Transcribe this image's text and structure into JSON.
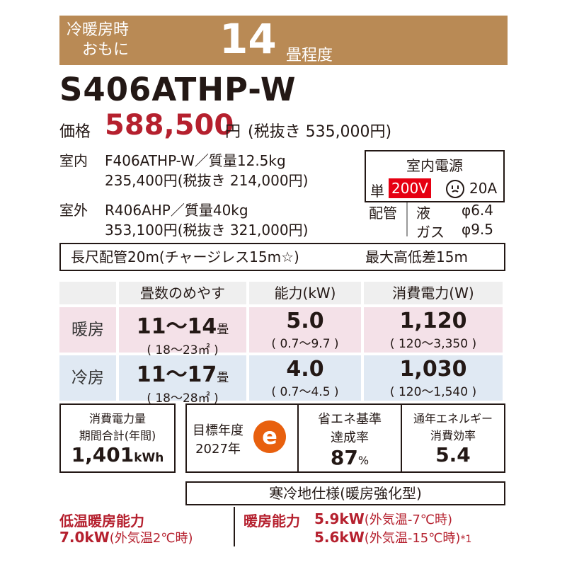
{
  "banner": {
    "line1": "冷暖房時",
    "line2": "おもに",
    "number": "14",
    "unit": "畳程度"
  },
  "model": "S406ATHP-W",
  "price": {
    "label": "価格",
    "value": "588,500",
    "yen": "円",
    "tax_note": "(税抜き 535,000円)"
  },
  "indoor": {
    "label": "室内",
    "model": "F406ATHP-W／質量12.5kg",
    "price": "235,400円(税抜き 214,000円)"
  },
  "outdoor": {
    "label": "室外",
    "model": "R406AHP／質量40kg",
    "price": "353,100円(税抜き 321,000円)"
  },
  "power": {
    "title": "室内電源",
    "single": "単",
    "voltage": "200V",
    "amp": "20A"
  },
  "piping": {
    "label": "配管",
    "liquid": "液",
    "liquid_size": "φ6.4",
    "gas": "ガス",
    "gas_size": "φ9.5"
  },
  "long_pipe": {
    "text": "長尺配管20m(チャージレス15m☆)",
    "height": "最大高低差15m"
  },
  "table": {
    "headers": [
      "畳数のめやす",
      "能力(kW)",
      "消費電力(W)"
    ],
    "rows": [
      {
        "label": "暖房",
        "tatami": "11～14",
        "tatami_unit": "畳",
        "tatami_sub": "( 18～23㎡ )",
        "capacity": "5.0",
        "capacity_sub": "( 0.7～9.7 )",
        "power": "1,120",
        "power_sub": "( 120～3,350 )"
      },
      {
        "label": "冷房",
        "tatami": "11～17",
        "tatami_unit": "畳",
        "tatami_sub": "( 18～28㎡ )",
        "capacity": "4.0",
        "capacity_sub": "( 0.7～4.5 )",
        "power": "1,030",
        "power_sub": "( 120～1,540 )"
      }
    ]
  },
  "energy": {
    "consumption_label1": "消費電力量",
    "consumption_label2": "期間合計(年間)",
    "consumption_value": "1,401",
    "consumption_unit": "kWh",
    "target_label1": "目標年度",
    "target_label2": "2027年",
    "eco_icon": "e",
    "achieve_label1": "省エネ基準",
    "achieve_label2": "達成率",
    "achieve_value": "87",
    "achieve_unit": "%",
    "apf_label1": "通年エネルギー",
    "apf_label2": "消費効率",
    "apf_value": "5.4"
  },
  "cold_spec": "寒冷地仕様(暖房強化型)",
  "low_temp": {
    "label": "低温暖房能力",
    "value": "7.0kW",
    "condition": "(外気温2℃時)"
  },
  "heating": {
    "label": "暖房能力",
    "value1": "5.9kW",
    "cond1": "(外気温-7℃時)",
    "value2": "5.6kW",
    "cond2": "(外気温-15℃時)",
    "note": "*1"
  },
  "colors": {
    "banner": "#b98a55",
    "price_red": "#b5202e",
    "voltage_bg": "#e60012",
    "warm_bg": "#f4e1e8",
    "cool_bg": "#e0e9f3",
    "eco_orange": "#e8600e"
  }
}
